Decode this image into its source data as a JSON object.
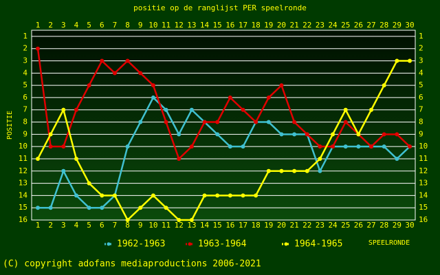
{
  "chart_data": {
    "type": "line",
    "title": "positie op de ranglijst PER speelronde",
    "y_label": "POSITIE",
    "x_label": "SPEELRONDE",
    "footer": "(C) copyright adofans mediaproductions 2006-2021",
    "x": [
      1,
      2,
      3,
      4,
      5,
      6,
      7,
      8,
      9,
      10,
      11,
      12,
      13,
      14,
      15,
      16,
      17,
      18,
      19,
      20,
      21,
      22,
      23,
      24,
      25,
      26,
      27,
      28,
      29,
      30
    ],
    "xlim": [
      1,
      30
    ],
    "xticks": [
      1,
      2,
      3,
      4,
      5,
      6,
      7,
      8,
      9,
      10,
      11,
      12,
      13,
      14,
      15,
      16,
      17,
      18,
      19,
      20,
      21,
      22,
      23,
      24,
      25,
      26,
      27,
      28,
      29,
      30
    ],
    "ylim": [
      16,
      0.5
    ],
    "yticks": [
      1,
      2,
      3,
      4,
      5,
      6,
      7,
      8,
      9,
      10,
      11,
      12,
      13,
      14,
      15,
      16
    ],
    "grid": true,
    "series": [
      {
        "name": "1962-1963",
        "color": "#40c0d0",
        "values": [
          15,
          15,
          12,
          14,
          15,
          15,
          14,
          10,
          8,
          6,
          7,
          9,
          7,
          8,
          9,
          10,
          10,
          8,
          8,
          9,
          9,
          9,
          12,
          10,
          10,
          10,
          10,
          10,
          11,
          10
        ]
      },
      {
        "name": "1963-1964",
        "color": "#e00000",
        "values": [
          2,
          10,
          10,
          7,
          5,
          3,
          4,
          3,
          4,
          5,
          8,
          11,
          10,
          8,
          8,
          6,
          7,
          8,
          6,
          5,
          8,
          9,
          10,
          10,
          8,
          9,
          10,
          9,
          9,
          10
        ]
      },
      {
        "name": "1964-1965",
        "color": "#ffff00",
        "values": [
          11,
          9,
          7,
          11,
          13,
          14,
          14,
          16,
          15,
          14,
          15,
          16,
          16,
          14,
          14,
          14,
          14,
          14,
          12,
          12,
          12,
          12,
          11,
          9,
          7,
          9,
          7,
          5,
          3,
          3
        ]
      }
    ]
  }
}
